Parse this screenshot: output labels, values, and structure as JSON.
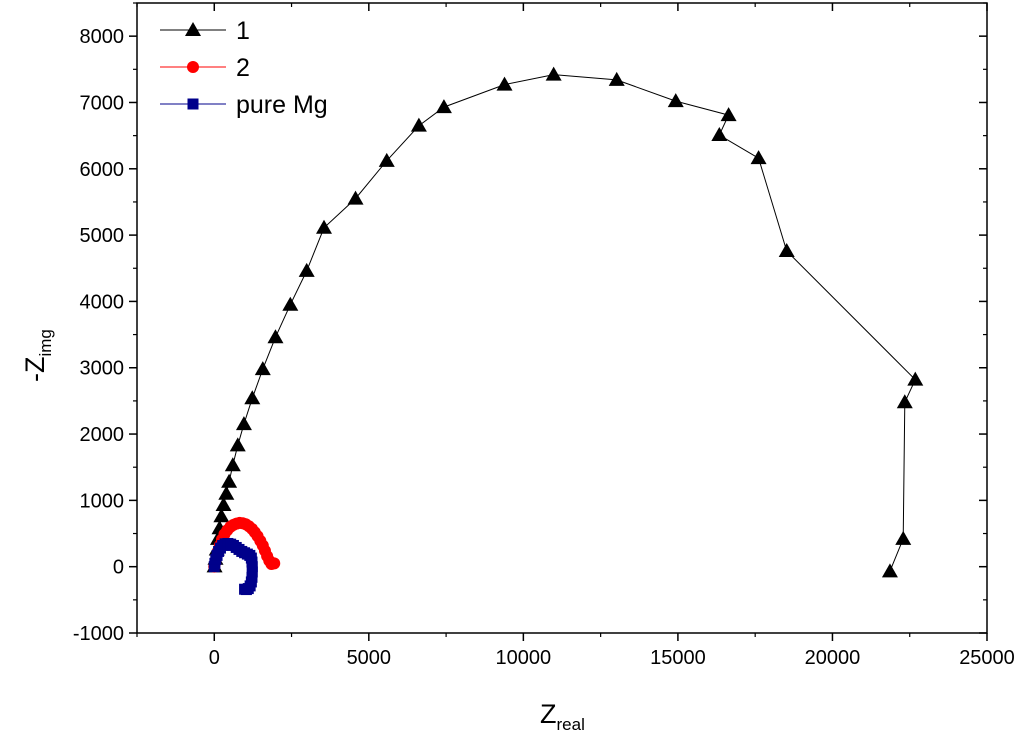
{
  "chart_data": {
    "type": "scatter",
    "title": "",
    "xlabel": {
      "main": "Z",
      "sub": "real"
    },
    "ylabel": {
      "main": "-Z",
      "sub": "img"
    },
    "xlim": [
      -2500,
      25000
    ],
    "ylim": [
      -1000,
      8500
    ],
    "xticks": [
      0,
      5000,
      10000,
      15000,
      20000,
      25000
    ],
    "yticks": [
      -1000,
      0,
      1000,
      2000,
      3000,
      4000,
      5000,
      6000,
      7000,
      8000
    ],
    "grid": false,
    "legend_position": "top-left",
    "series": [
      {
        "name": "1",
        "color": "#000000",
        "marker": "triangle",
        "points": [
          [
            10,
            5
          ],
          [
            40,
            120
          ],
          [
            80,
            260
          ],
          [
            120,
            420
          ],
          [
            170,
            580
          ],
          [
            230,
            760
          ],
          [
            300,
            930
          ],
          [
            390,
            1100
          ],
          [
            480,
            1280
          ],
          [
            600,
            1530
          ],
          [
            760,
            1830
          ],
          [
            960,
            2150
          ],
          [
            1230,
            2540
          ],
          [
            1570,
            2980
          ],
          [
            1980,
            3460
          ],
          [
            2460,
            3950
          ],
          [
            2990,
            4460
          ],
          [
            3550,
            5110
          ],
          [
            4570,
            5550
          ],
          [
            5580,
            6120
          ],
          [
            6620,
            6650
          ],
          [
            7430,
            6930
          ],
          [
            9390,
            7270
          ],
          [
            10980,
            7420
          ],
          [
            13020,
            7340
          ],
          [
            14930,
            7020
          ],
          [
            16640,
            6810
          ],
          [
            16340,
            6510
          ],
          [
            17610,
            6160
          ],
          [
            18520,
            4760
          ],
          [
            22680,
            2820
          ],
          [
            22340,
            2480
          ],
          [
            22290,
            420
          ],
          [
            21860,
            -70
          ]
        ]
      },
      {
        "name": "2",
        "color": "#ff0000",
        "marker": "circle",
        "points": [
          [
            0,
            0
          ],
          [
            30,
            60
          ],
          [
            70,
            140
          ],
          [
            120,
            230
          ],
          [
            180,
            320
          ],
          [
            250,
            410
          ],
          [
            330,
            490
          ],
          [
            420,
            550
          ],
          [
            520,
            600
          ],
          [
            620,
            630
          ],
          [
            720,
            650
          ],
          [
            820,
            660
          ],
          [
            920,
            655
          ],
          [
            1020,
            640
          ],
          [
            1120,
            610
          ],
          [
            1220,
            570
          ],
          [
            1310,
            520
          ],
          [
            1400,
            460
          ],
          [
            1490,
            390
          ],
          [
            1570,
            320
          ],
          [
            1640,
            240
          ],
          [
            1710,
            160
          ],
          [
            1780,
            90
          ],
          [
            1850,
            40
          ],
          [
            1940,
            50
          ]
        ]
      },
      {
        "name": "pure Mg",
        "color": "#00008b",
        "marker": "square",
        "points": [
          [
            0,
            0
          ],
          [
            20,
            50
          ],
          [
            50,
            110
          ],
          [
            90,
            170
          ],
          [
            140,
            230
          ],
          [
            200,
            280
          ],
          [
            270,
            320
          ],
          [
            350,
            345
          ],
          [
            440,
            350
          ],
          [
            530,
            340
          ],
          [
            620,
            320
          ],
          [
            710,
            290
          ],
          [
            800,
            260
          ],
          [
            890,
            230
          ],
          [
            980,
            210
          ],
          [
            1070,
            190
          ],
          [
            1150,
            170
          ],
          [
            1200,
            130
          ],
          [
            1220,
            70
          ],
          [
            1230,
            0
          ],
          [
            1230,
            -80
          ],
          [
            1220,
            -160
          ],
          [
            1200,
            -230
          ],
          [
            1160,
            -290
          ],
          [
            1100,
            -330
          ],
          [
            1040,
            -345
          ],
          [
            980,
            -340
          ]
        ]
      }
    ]
  }
}
